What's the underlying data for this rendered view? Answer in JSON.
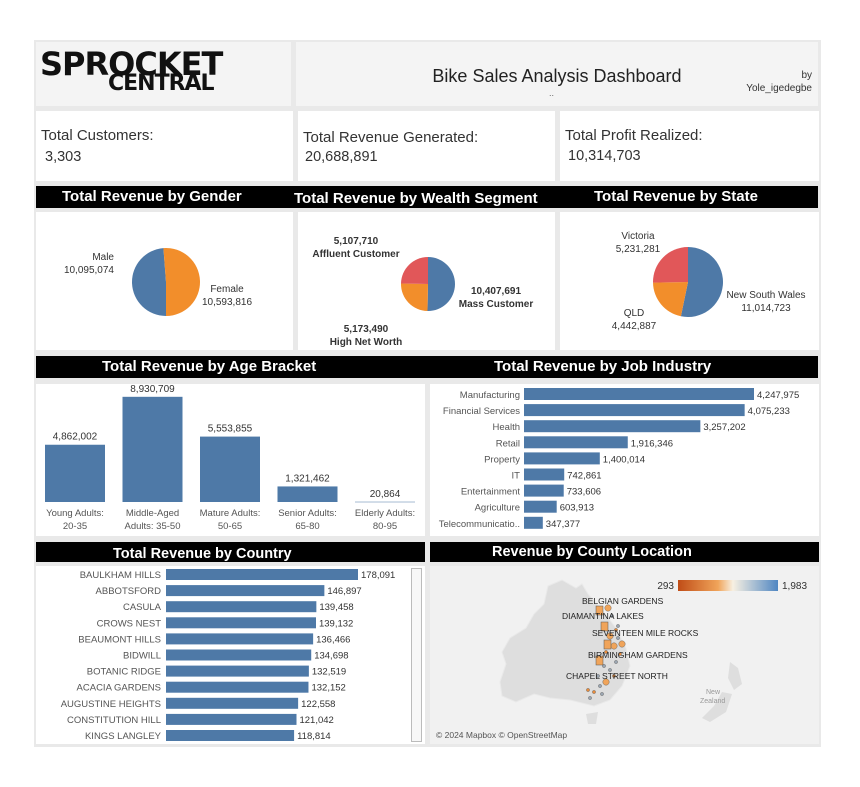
{
  "logo": {
    "line1": "SPROCKET",
    "line2": "CENTRAL"
  },
  "header": {
    "title": "Bike Sales Analysis Dashboard",
    "by": "by",
    "author": "Yole_igedegbe",
    "subtitle": ".."
  },
  "kpis": [
    {
      "label": "Total Customers:",
      "value": "3,303"
    },
    {
      "label": "Total Revenue Generated:",
      "value": "20,688,891"
    },
    {
      "label": "Total Profit Realized:",
      "value": "10,314,703"
    }
  ],
  "section_titles": {
    "gender": "Total Revenue by Gender",
    "wealth": "Total Revenue by Wealth Segment",
    "state": "Total Revenue by  State",
    "age": "Total Revenue by  Age Bracket",
    "job": "Total Revenue by Job Industry",
    "country": "Total Revenue by Country",
    "county": "Revenue by County Location"
  },
  "colors": {
    "blue": "#4e79a7",
    "orange": "#f28e2b",
    "red": "#e15759",
    "map_low": "#c8501b",
    "map_high": "#5b8fc7"
  },
  "chart_data": [
    {
      "id": "gender",
      "type": "pie",
      "title": "Total Revenue by Gender",
      "slices": [
        {
          "label": "Male",
          "value": 10095074,
          "display": "10,095,074",
          "color": "#4e79a7"
        },
        {
          "label": "Female",
          "value": 10593816,
          "display": "10,593,816",
          "color": "#f28e2b"
        }
      ]
    },
    {
      "id": "wealth",
      "type": "pie",
      "title": "Total Revenue by Wealth Segment",
      "slices": [
        {
          "label": "Mass Customer",
          "value": 10407691,
          "display": "10,407,691",
          "color": "#4e79a7"
        },
        {
          "label": "High Net Worth",
          "value": 5173490,
          "display": "5,173,490",
          "color": "#f28e2b"
        },
        {
          "label": "Affluent Customer",
          "value": 5107710,
          "display": "5,107,710",
          "color": "#e15759"
        }
      ]
    },
    {
      "id": "state",
      "type": "pie",
      "title": "Total Revenue by  State",
      "slices": [
        {
          "label": "New South Wales",
          "value": 11014723,
          "display": "11,014,723",
          "color": "#4e79a7"
        },
        {
          "label": "QLD",
          "value": 4442887,
          "display": "4,442,887",
          "color": "#f28e2b"
        },
        {
          "label": "Victoria",
          "value": 5231281,
          "display": "5,231,281",
          "color": "#e15759"
        }
      ]
    },
    {
      "id": "age",
      "type": "bar",
      "title": "Total Revenue by  Age Bracket",
      "categories": [
        [
          "Young Adults:",
          "20-35"
        ],
        [
          "Middle-Aged",
          "Adults: 35-50"
        ],
        [
          "Mature Adults:",
          "50-65"
        ],
        [
          "Senior Adults:",
          "65-80"
        ],
        [
          "Elderly Adults:",
          "80-95"
        ]
      ],
      "values": [
        4862002,
        8930709,
        5553855,
        1321462,
        20864
      ],
      "labels": [
        "4,862,002",
        "8,930,709",
        "5,553,855",
        "1,321,462",
        "20,864"
      ]
    },
    {
      "id": "job",
      "type": "bar",
      "orientation": "horizontal",
      "title": "Total Revenue by Job Industry",
      "categories": [
        "Manufacturing",
        "Financial Services",
        "Health",
        "Retail",
        "Property",
        "IT",
        "Entertainment",
        "Agriculture",
        "Telecommunicatio.."
      ],
      "values": [
        4247975,
        4075233,
        3257202,
        1916346,
        1400014,
        742861,
        733606,
        603913,
        347377
      ],
      "labels": [
        "4,247,975",
        "4,075,233",
        "3,257,202",
        "1,916,346",
        "1,400,014",
        "742,861",
        "733,606",
        "603,913",
        "347,377"
      ]
    },
    {
      "id": "country",
      "type": "bar",
      "orientation": "horizontal",
      "title": "Total Revenue by Country",
      "categories": [
        "BAULKHAM HILLS",
        "ABBOTSFORD",
        "CASULA",
        "CROWS NEST",
        "BEAUMONT HILLS",
        "BIDWILL",
        "BOTANIC RIDGE",
        "ACACIA GARDENS",
        "AUGUSTINE HEIGHTS",
        "CONSTITUTION HILL",
        "KINGS LANGLEY"
      ],
      "values": [
        178091,
        146897,
        139458,
        139132,
        136466,
        134698,
        132519,
        132152,
        122558,
        121042,
        118814
      ],
      "labels": [
        "178,091",
        "146,897",
        "139,458",
        "139,132",
        "136,466",
        "134,698",
        "132,519",
        "132,152",
        "122,558",
        "121,042",
        "118,814"
      ]
    }
  ],
  "map": {
    "title": "Revenue by County Location",
    "legend_min": "293",
    "legend_max": "1,983",
    "labels": [
      "BELGIAN GARDENS",
      "DIAMANTINA LAKES",
      "SEVENTEEN MILE ROCKS",
      "BIRMINGHAM GARDENS",
      "CHAPEL STREET NORTH"
    ],
    "nz_label": [
      "New",
      "Zealand"
    ],
    "attribution": "© 2024 Mapbox © OpenStreetMap"
  }
}
